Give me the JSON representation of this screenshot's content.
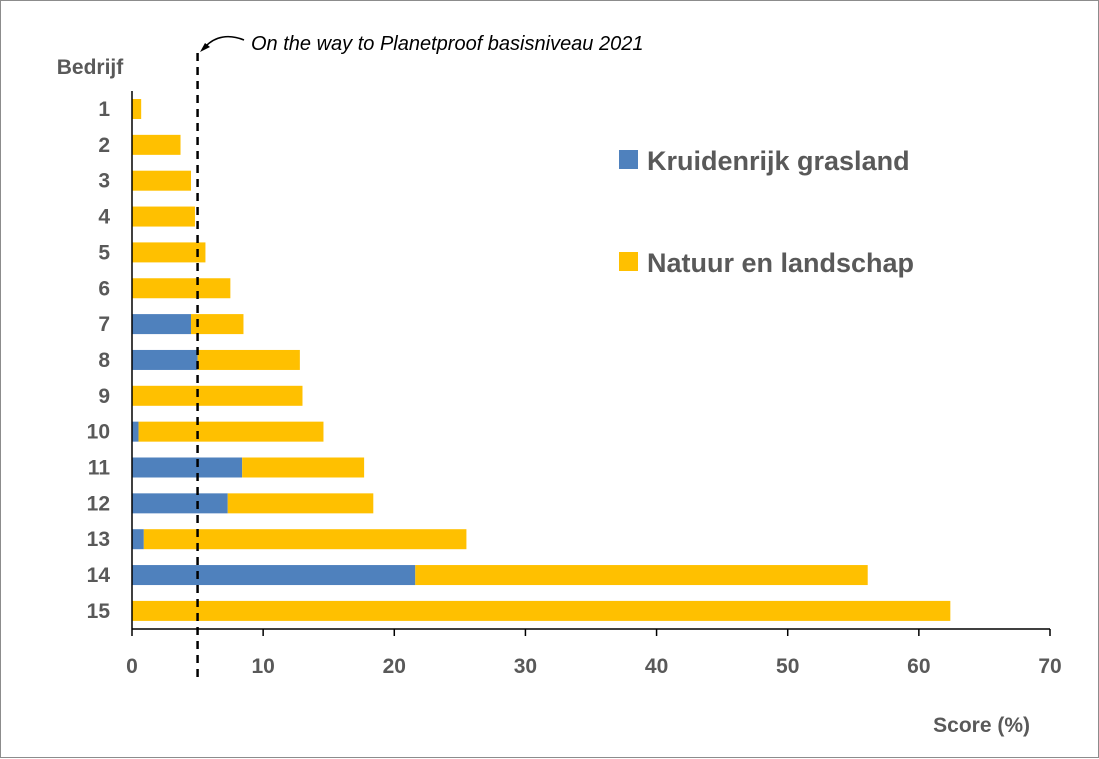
{
  "chart_data": {
    "type": "bar",
    "orientation": "horizontal",
    "stacked": true,
    "title": "",
    "ylabel": "Bedrijf",
    "xlabel": "Score (%)",
    "xlim": [
      0,
      70
    ],
    "xticks": [
      "0",
      "10",
      "20",
      "30",
      "40",
      "50",
      "60",
      "70"
    ],
    "categories": [
      "1",
      "2",
      "3",
      "4",
      "5",
      "6",
      "7",
      "8",
      "9",
      "10",
      "11",
      "12",
      "13",
      "14",
      "15"
    ],
    "series": [
      {
        "name": "Kruidenrijk grasland",
        "color": "#4f81bd",
        "values": [
          0,
          0,
          0,
          0,
          0,
          0,
          4.5,
          5.0,
          0,
          0.5,
          8.4,
          7.3,
          0.9,
          21.6,
          0
        ]
      },
      {
        "name": "Natuur en landschap",
        "color": "#ffc000",
        "values": [
          0.7,
          3.7,
          4.5,
          4.8,
          5.6,
          7.5,
          4.0,
          7.8,
          13.0,
          14.1,
          9.3,
          11.1,
          24.6,
          34.5,
          62.4
        ]
      }
    ],
    "reference_line": {
      "x": 5,
      "label": "On the way to Planetproof basisniveau 2021"
    },
    "legend_position": "right",
    "grid": false
  }
}
